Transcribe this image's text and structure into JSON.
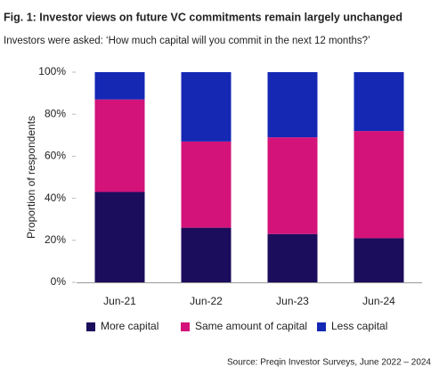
{
  "chart_data": {
    "type": "stacked_bar",
    "title": "Fig. 1: Investor views on future VC commitments remain largely unchanged",
    "subtitle": "Investors were asked: ‘How much capital will you commit in the next 12 months?’",
    "y_label": "Proportion of respondents",
    "source": "Source: Preqin Investor Surveys, June 2022 – 2024",
    "categories": [
      "Jun-21",
      "Jun-22",
      "Jun-23",
      "Jun-24"
    ],
    "series": [
      {
        "name": "More capital",
        "color": "#1c0c5c",
        "values": [
          43,
          26,
          23,
          21
        ]
      },
      {
        "name": "Same amount of capital",
        "color": "#d3137a",
        "values": [
          44,
          41,
          46,
          51
        ]
      },
      {
        "name": "Less capital",
        "color": "#1428b4",
        "values": [
          13,
          33,
          31,
          28
        ]
      }
    ],
    "ylim": [
      0,
      100
    ],
    "yticks": [
      {
        "value": 0,
        "label": "0%"
      },
      {
        "value": 20,
        "label": "20%"
      },
      {
        "value": 40,
        "label": "40%"
      },
      {
        "value": 60,
        "label": "60%"
      },
      {
        "value": 80,
        "label": "80%"
      },
      {
        "value": 100,
        "label": "100%"
      }
    ]
  }
}
